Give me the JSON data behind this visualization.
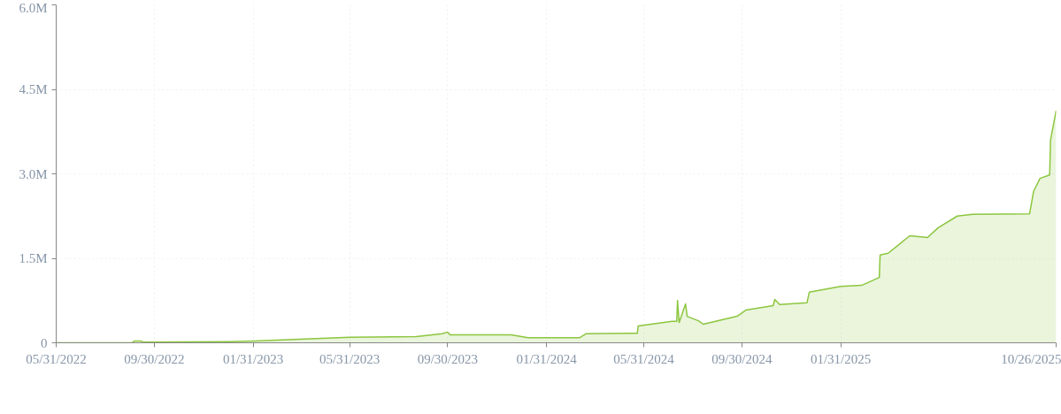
{
  "chart_data": {
    "type": "area",
    "x": [
      "2022-05-31",
      "2022-09-03",
      "2022-09-05",
      "2022-09-14",
      "2022-09-16",
      "2022-12-31",
      "2023-02-01",
      "2023-05-31",
      "2023-08-22",
      "2023-09-23",
      "2023-09-30",
      "2023-10-03",
      "2023-12-18",
      "2024-01-08",
      "2024-03-12",
      "2024-03-20",
      "2024-05-14",
      "2024-05-23",
      "2024-05-24",
      "2024-07-05",
      "2024-07-11",
      "2024-07-12",
      "2024-07-14",
      "2024-07-22",
      "2024-07-24",
      "2024-08-07",
      "2024-08-13",
      "2024-09-24",
      "2024-10-05",
      "2024-11-08",
      "2024-11-10",
      "2024-11-16",
      "2024-12-20",
      "2024-12-23",
      "2025-01-31",
      "2025-02-26",
      "2025-03-20",
      "2025-03-21",
      "2025-03-31",
      "2025-04-27",
      "2025-05-19",
      "2025-06-01",
      "2025-06-25",
      "2025-07-14",
      "2025-09-23",
      "2025-09-28",
      "2025-10-06",
      "2025-10-18",
      "2025-10-19",
      "2025-10-26"
    ],
    "series": [
      {
        "color": "#8cc63f",
        "values": [
          0,
          5000,
          30000,
          30000,
          10000,
          20000,
          30000,
          100000,
          110000,
          160000,
          190000,
          140000,
          140000,
          90000,
          90000,
          160000,
          170000,
          170000,
          300000,
          380000,
          380000,
          750000,
          360000,
          690000,
          470000,
          390000,
          330000,
          470000,
          580000,
          660000,
          770000,
          680000,
          710000,
          900000,
          1000000,
          1020000,
          1160000,
          1560000,
          1590000,
          1900000,
          1870000,
          2040000,
          2250000,
          2280000,
          2290000,
          2690000,
          2920000,
          2980000,
          3600000,
          4120000
        ]
      }
    ],
    "xlim": [
      "2022-05-31",
      "2025-10-26"
    ],
    "xticks": [
      {
        "value": "2022-05-31",
        "label": "05/31/2022"
      },
      {
        "value": "2022-09-30",
        "label": "09/30/2022"
      },
      {
        "value": "2023-01-31",
        "label": "01/31/2023"
      },
      {
        "value": "2023-05-31",
        "label": "05/31/2023"
      },
      {
        "value": "2023-09-30",
        "label": "09/30/2023"
      },
      {
        "value": "2024-01-31",
        "label": "01/31/2024"
      },
      {
        "value": "2024-05-31",
        "label": "05/31/2024"
      },
      {
        "value": "2024-09-30",
        "label": "09/30/2024"
      },
      {
        "value": "2025-01-31",
        "label": "01/31/2025"
      },
      {
        "value": "2025-10-26",
        "label": "10/26/2025"
      }
    ],
    "ylim": [
      0,
      6000000
    ],
    "yticks": [
      {
        "value": 0,
        "label": "0"
      },
      {
        "value": 1500000,
        "label": "1.5M"
      },
      {
        "value": 3000000,
        "label": "3.0M"
      },
      {
        "value": 4500000,
        "label": "4.5M"
      },
      {
        "value": 6000000,
        "label": "6.0M"
      }
    ],
    "grid": true,
    "line_style": "solid"
  }
}
